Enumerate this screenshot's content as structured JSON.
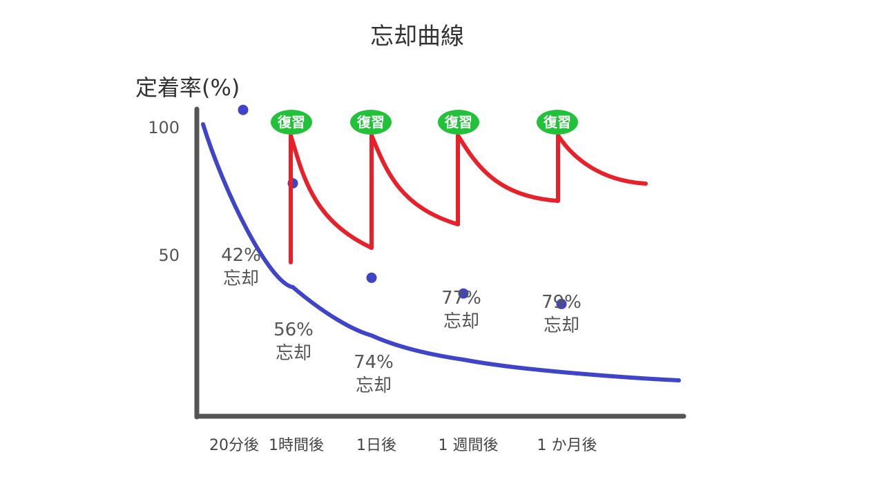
{
  "chart_data": {
    "type": "line",
    "title": "忘却曲線",
    "ylabel": "定着率(%)",
    "xlabel": "",
    "ylim": [
      0,
      100
    ],
    "y_ticks": [
      "100",
      "50"
    ],
    "x_ticks": [
      "20分後",
      "1時間後",
      "1日後",
      "1 週間後",
      "1 か月後"
    ],
    "grid": false,
    "series": [
      {
        "color": "#3f44c8",
        "points": [
          {
            "x": "20分後",
            "retained": 58,
            "label": "42%\n忘却"
          },
          {
            "x": "1時間後",
            "retained": 44,
            "label": "56%\n忘却"
          },
          {
            "x": "1日後",
            "retained": 26,
            "label": "74%\n忘却"
          },
          {
            "x": "1 週間後",
            "retained": 23,
            "label": "77%\n忘却"
          },
          {
            "x": "1 か月後",
            "retained": 21,
            "label": "79%\n忘却"
          }
        ]
      },
      {
        "color": "#e8202a",
        "review_label": "復習",
        "review_color": "#22c13a",
        "reviews": [
          {
            "at": "1時間後",
            "low": 60
          },
          {
            "at": "1日後",
            "low": 68
          },
          {
            "at": "1 週間後",
            "low": 75
          },
          {
            "at": "1 か月後",
            "low": 84
          }
        ]
      }
    ]
  }
}
